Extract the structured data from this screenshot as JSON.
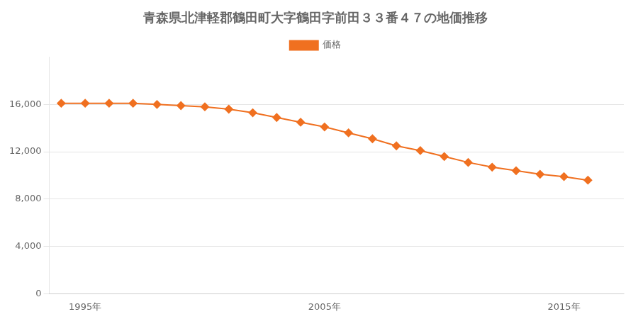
{
  "chart_data": {
    "type": "line",
    "title": "青森県北津軽郡鶴田町大字鶴田字前田３３番４７の地価推移",
    "x": [
      1994,
      1995,
      1996,
      1997,
      1998,
      1999,
      2000,
      2001,
      2002,
      2003,
      2004,
      2005,
      2006,
      2007,
      2008,
      2009,
      2010,
      2011,
      2012,
      2013,
      2014,
      2015,
      2016
    ],
    "series": [
      {
        "name": "価格",
        "color": "#f07020",
        "marker": "diamond",
        "values": [
          16100,
          16100,
          16100,
          16100,
          16000,
          15900,
          15800,
          15600,
          15300,
          14900,
          14500,
          14100,
          13600,
          13100,
          12500,
          12100,
          11600,
          11100,
          10700,
          10400,
          10100,
          9900,
          9600
        ]
      }
    ],
    "xlim": [
      1993.5,
      2017.5
    ],
    "xticks": [
      {
        "value": 1995,
        "label": "1995年"
      },
      {
        "value": 2005,
        "label": "2005年"
      },
      {
        "value": 2015,
        "label": "2015年"
      }
    ],
    "ylim": [
      0,
      20000
    ],
    "yticks": [
      0,
      {
        "value": 4000,
        "label": "4,000"
      },
      {
        "value": 8000,
        "label": "8,000"
      },
      {
        "value": 12000,
        "label": "12,000"
      },
      {
        "value": 16000,
        "label": "16,000"
      }
    ],
    "grid": "y",
    "legend": "top"
  }
}
